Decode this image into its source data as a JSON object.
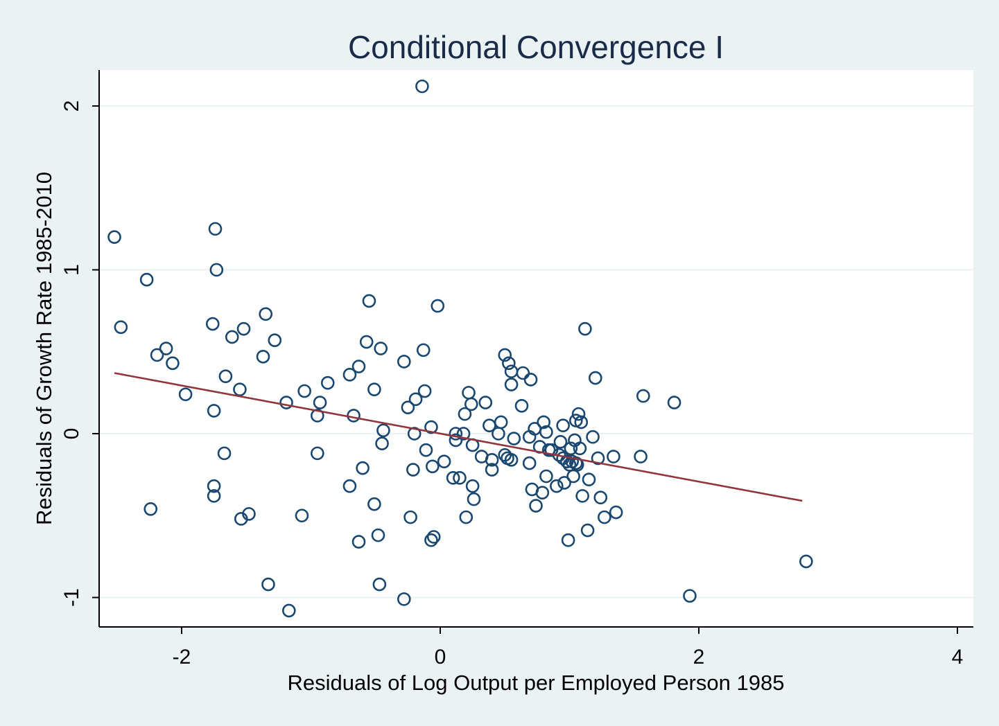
{
  "chart_data": {
    "type": "scatter",
    "title": "Conditional Convergence I",
    "xlabel": "Residuals of Log Output per Employed Person 1985",
    "ylabel": "Residuals of Growth Rate 1985-2010",
    "xlim": [
      -2.62,
      4.1
    ],
    "ylim": [
      -1.18,
      2.22
    ],
    "xticks": [
      -2,
      0,
      2,
      4
    ],
    "yticks": [
      -1,
      0,
      1,
      2
    ],
    "xtick_labels": [
      "-2",
      "0",
      "2",
      "4"
    ],
    "ytick_labels": [
      "-1",
      "0",
      "1",
      "2"
    ],
    "grid": true,
    "colors": {
      "points": "#1a476f",
      "fit_line": "#90353b",
      "background": "#eaf2f3",
      "plot_background": "#ffffff"
    },
    "series": [
      {
        "kind": "points",
        "points": [
          [
            -2.52,
            1.2
          ],
          [
            -2.47,
            0.65
          ],
          [
            -2.27,
            0.94
          ],
          [
            -2.24,
            -0.46
          ],
          [
            -2.19,
            0.48
          ],
          [
            -2.12,
            0.52
          ],
          [
            -2.07,
            0.43
          ],
          [
            -1.97,
            0.24
          ],
          [
            -1.75,
            0.14
          ],
          [
            -1.76,
            0.67
          ],
          [
            -1.74,
            1.25
          ],
          [
            -1.73,
            1.0
          ],
          [
            -1.75,
            -0.32
          ],
          [
            -1.75,
            -0.38
          ],
          [
            -1.66,
            0.35
          ],
          [
            -1.67,
            -0.12
          ],
          [
            -1.61,
            0.59
          ],
          [
            -1.55,
            0.27
          ],
          [
            -1.52,
            0.64
          ],
          [
            -1.54,
            -0.52
          ],
          [
            -1.48,
            -0.49
          ],
          [
            -1.37,
            0.47
          ],
          [
            -1.35,
            0.73
          ],
          [
            -1.33,
            -0.92
          ],
          [
            -1.28,
            0.57
          ],
          [
            -1.19,
            0.19
          ],
          [
            -1.17,
            -1.08
          ],
          [
            -1.07,
            -0.5
          ],
          [
            -1.05,
            0.26
          ],
          [
            -0.95,
            0.11
          ],
          [
            -0.95,
            -0.12
          ],
          [
            -0.93,
            0.19
          ],
          [
            -0.87,
            0.31
          ],
          [
            -0.7,
            0.36
          ],
          [
            -0.7,
            -0.32
          ],
          [
            -0.67,
            0.11
          ],
          [
            -0.63,
            -0.66
          ],
          [
            -0.63,
            0.41
          ],
          [
            -0.6,
            -0.21
          ],
          [
            -0.57,
            0.56
          ],
          [
            -0.55,
            0.81
          ],
          [
            -0.51,
            0.27
          ],
          [
            -0.51,
            -0.43
          ],
          [
            -0.48,
            -0.62
          ],
          [
            -0.47,
            -0.92
          ],
          [
            -0.46,
            0.52
          ],
          [
            -0.45,
            -0.06
          ],
          [
            -0.44,
            0.02
          ],
          [
            -0.28,
            0.44
          ],
          [
            -0.28,
            -1.01
          ],
          [
            -0.25,
            0.16
          ],
          [
            -0.23,
            -0.51
          ],
          [
            -0.21,
            -0.22
          ],
          [
            -0.2,
            0.0
          ],
          [
            -0.19,
            0.21
          ],
          [
            -0.13,
            0.51
          ],
          [
            -0.12,
            0.26
          ],
          [
            -0.11,
            -0.1
          ],
          [
            -0.07,
            -0.65
          ],
          [
            -0.07,
            0.04
          ],
          [
            -0.06,
            -0.2
          ],
          [
            -0.05,
            -0.63
          ],
          [
            -0.02,
            0.78
          ],
          [
            0.03,
            -0.17
          ],
          [
            0.1,
            -0.27
          ],
          [
            0.12,
            -0.04
          ],
          [
            0.12,
            0.0
          ],
          [
            0.15,
            -0.27
          ],
          [
            0.18,
            0.0
          ],
          [
            0.19,
            0.12
          ],
          [
            0.2,
            -0.51
          ],
          [
            0.22,
            0.25
          ],
          [
            0.24,
            0.18
          ],
          [
            0.25,
            -0.07
          ],
          [
            0.25,
            -0.32
          ],
          [
            0.26,
            -0.4
          ],
          [
            0.32,
            -0.14
          ],
          [
            0.35,
            0.19
          ],
          [
            0.38,
            0.05
          ],
          [
            0.4,
            -0.16
          ],
          [
            0.4,
            -0.22
          ],
          [
            0.45,
            0.0
          ],
          [
            0.47,
            0.07
          ],
          [
            0.5,
            -0.13
          ],
          [
            0.5,
            0.48
          ],
          [
            0.52,
            -0.15
          ],
          [
            0.53,
            0.43
          ],
          [
            0.55,
            0.3
          ],
          [
            0.55,
            0.38
          ],
          [
            0.55,
            -0.16
          ],
          [
            0.57,
            -0.03
          ],
          [
            0.63,
            0.17
          ],
          [
            0.64,
            0.37
          ],
          [
            0.69,
            -0.02
          ],
          [
            0.69,
            -0.18
          ],
          [
            0.7,
            0.33
          ],
          [
            0.71,
            -0.34
          ],
          [
            0.73,
            0.03
          ],
          [
            0.74,
            -0.44
          ],
          [
            0.77,
            -0.08
          ],
          [
            0.79,
            -0.36
          ],
          [
            0.8,
            0.07
          ],
          [
            0.82,
            0.01
          ],
          [
            0.82,
            -0.26
          ],
          [
            0.84,
            -0.1
          ],
          [
            0.86,
            -0.1
          ],
          [
            0.9,
            -0.32
          ],
          [
            0.92,
            -0.13
          ],
          [
            0.93,
            -0.05
          ],
          [
            0.95,
            0.05
          ],
          [
            0.95,
            -0.15
          ],
          [
            0.96,
            -0.3
          ],
          [
            0.98,
            -0.17
          ],
          [
            0.99,
            -0.65
          ],
          [
            1.0,
            -0.19
          ],
          [
            1.01,
            -0.09
          ],
          [
            1.02,
            -0.17
          ],
          [
            1.03,
            -0.26
          ],
          [
            1.04,
            -0.04
          ],
          [
            1.05,
            0.08
          ],
          [
            1.05,
            -0.18
          ],
          [
            1.06,
            -0.19
          ],
          [
            1.07,
            0.12
          ],
          [
            1.08,
            -0.09
          ],
          [
            1.09,
            0.07
          ],
          [
            1.1,
            -0.38
          ],
          [
            1.12,
            0.64
          ],
          [
            1.14,
            -0.59
          ],
          [
            1.15,
            -0.28
          ],
          [
            1.18,
            -0.02
          ],
          [
            1.2,
            0.34
          ],
          [
            1.22,
            -0.15
          ],
          [
            1.24,
            -0.39
          ],
          [
            1.27,
            -0.51
          ],
          [
            1.34,
            -0.14
          ],
          [
            1.36,
            -0.48
          ],
          [
            1.55,
            -0.14
          ],
          [
            1.57,
            0.23
          ],
          [
            1.81,
            0.19
          ],
          [
            1.93,
            -0.99
          ],
          [
            2.83,
            -0.78
          ],
          [
            -0.14,
            2.12
          ]
        ]
      },
      {
        "kind": "fit_line",
        "points": [
          [
            -2.52,
            0.37
          ],
          [
            2.8,
            -0.41
          ]
        ]
      }
    ]
  }
}
